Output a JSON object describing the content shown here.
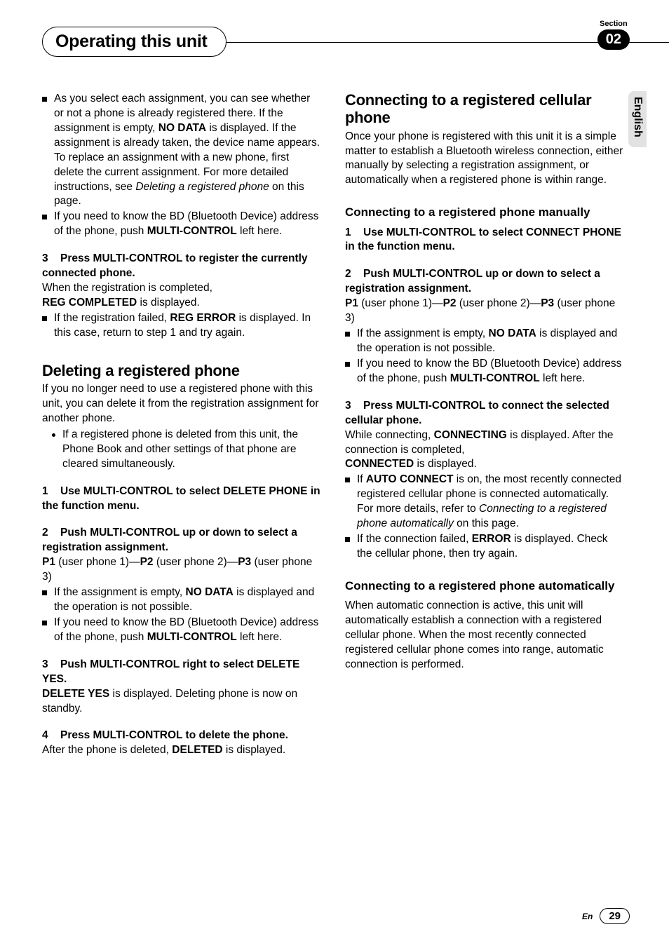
{
  "header": {
    "chapter_title": "Operating this unit",
    "section_label": "Section",
    "section_number": "02"
  },
  "side_tab": {
    "label": "English"
  },
  "footer": {
    "lang": "En",
    "page": "29"
  },
  "colors": {
    "text": "#000000",
    "background": "#ffffff",
    "tab_bg": "#e2e2e2",
    "pill_bg": "#000000",
    "pill_fg": "#ffffff"
  },
  "typography": {
    "body_fontsize_pt": 12,
    "h2_fontsize_pt": 16,
    "h3_fontsize_pt": 13,
    "chapter_title_fontsize_pt": 18
  },
  "left": {
    "b1": "As you select each assignment, you can see whether or not a phone is already registered there. If the assignment is empty, ",
    "b1_bold1": "NO DATA",
    "b1_cont": " is displayed. If the assignment is already taken, the device name appears. To replace an assignment with a new phone, first delete the current assignment. For more detailed instructions, see ",
    "b1_ital": "Deleting a registered phone",
    "b1_end": " on this page.",
    "b2": "If you need to know the BD (Bluetooth Device) address of the phone, push ",
    "b2_bold": "MULTI-CONTROL",
    "b2_end": " left here.",
    "s3_num": "3",
    "s3_line": "Press MULTI-CONTROL to register the currently connected phone.",
    "s3_body_a": "When the registration is completed,",
    "s3_body_b_bold": "REG COMPLETED",
    "s3_body_b_end": " is displayed.",
    "s3_bullet_a": "If the registration failed, ",
    "s3_bullet_bold": "REG ERROR",
    "s3_bullet_end": " is displayed. In this case, return to step 1 and try again.",
    "h2_del": "Deleting a registered phone",
    "del_intro": "If you no longer need to use a registered phone with this unit, you can delete it from the registration assignment for another phone.",
    "del_dot": "If a registered phone is deleted from this unit, the Phone Book and other settings of that phone are cleared simultaneously.",
    "d1_num": "1",
    "d1_line": "Use MULTI-CONTROL to select DELETE PHONE in the function menu.",
    "d2_num": "2",
    "d2_line": "Push MULTI-CONTROL up or down to select a registration assignment.",
    "d2_body_p1b": "P1",
    "d2_body_p1t": " (user phone 1)—",
    "d2_body_p2b": "P2",
    "d2_body_p2t": " (user phone 2)—",
    "d2_body_p3b": "P3",
    "d2_body_p3t": " (user phone 3)",
    "d2_bul1_a": "If the assignment is empty, ",
    "d2_bul1_bold": "NO DATA",
    "d2_bul1_end": " is displayed and the operation is not possible.",
    "d2_bul2_a": "If you need to know the BD (Bluetooth Device) address of the phone, push ",
    "d2_bul2_bold": "MULTI-CONTROL",
    "d2_bul2_end": " left here.",
    "d3_num": "3",
    "d3_line": "Push MULTI-CONTROL right to select DELETE YES.",
    "d3_body_bold": "DELETE YES",
    "d3_body_end": " is displayed. Deleting phone is now on standby.",
    "d4_num": "4",
    "d4_line": "Press MULTI-CONTROL to delete the phone.",
    "d4_body_a": "After the phone is deleted, ",
    "d4_body_bold": "DELETED",
    "d4_body_end": " is displayed."
  },
  "right": {
    "h2_conn": "Connecting to a registered cellular phone",
    "conn_intro": "Once your phone is registered with this unit it is a simple matter to establish a Bluetooth wireless connection, either manually by selecting a registration assignment, or automatically when a registered phone is within range.",
    "h3_manual": "Connecting to a registered phone manually",
    "m1_num": "1",
    "m1_line": "Use MULTI-CONTROL to select CONNECT PHONE in the function menu.",
    "m2_num": "2",
    "m2_line": "Push MULTI-CONTROL up or down to select a registration assignment.",
    "m2_body_p1b": "P1",
    "m2_body_p1t": " (user phone 1)—",
    "m2_body_p2b": "P2",
    "m2_body_p2t": " (user phone 2)—",
    "m2_body_p3b": "P3",
    "m2_body_p3t": " (user phone 3)",
    "m2_bul1_a": "If the assignment is empty, ",
    "m2_bul1_bold": "NO DATA",
    "m2_bul1_end": " is displayed and the operation is not possible.",
    "m2_bul2_a": "If you need to know the BD (Bluetooth Device) address of the phone, push ",
    "m2_bul2_bold": "MULTI-CONTROL",
    "m2_bul2_end": " left here.",
    "m3_num": "3",
    "m3_line": "Press MULTI-CONTROL to connect the selected cellular phone.",
    "m3_body_a": "While connecting, ",
    "m3_body_bold1": "CONNECTING",
    "m3_body_b": " is displayed. After the connection is completed,",
    "m3_body_bold2": "CONNECTED",
    "m3_body_c": " is displayed.",
    "m3_bul1_a": "If ",
    "m3_bul1_bold": "AUTO CONNECT",
    "m3_bul1_b": " is on, the most recently connected registered cellular phone is connected automatically. For more details, refer to ",
    "m3_bul1_ital": "Connecting to a registered phone automatically",
    "m3_bul1_end": " on this page.",
    "m3_bul2_a": "If the connection failed, ",
    "m3_bul2_bold": "ERROR",
    "m3_bul2_end": " is displayed. Check the cellular phone, then try again.",
    "h3_auto": "Connecting to a registered phone automatically",
    "auto_intro": "When automatic connection is active, this unit will automatically establish a connection with a registered cellular phone. When the most recently connected registered cellular phone comes into range, automatic connection is performed."
  }
}
